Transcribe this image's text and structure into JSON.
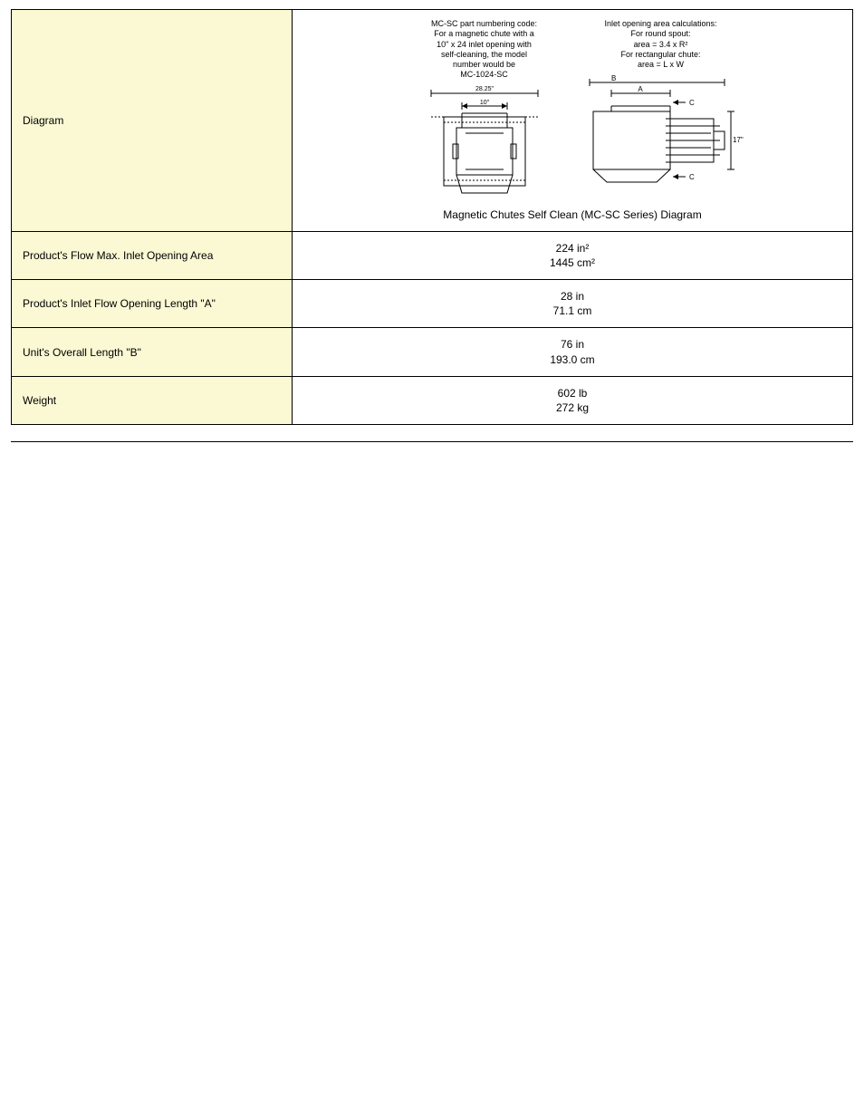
{
  "rows": {
    "diagram": {
      "label": "Diagram",
      "left_text": "MC-SC part numbering code:\nFor a magnetic chute with a\n10\" x 24 inlet opening with\nself-cleaning, the model\nnumber would be\nMC-1024-SC",
      "right_text": "Inlet opening area calculations:\nFor round spout:\narea = 3.4 x R²\nFor rectangular chute:\narea = L x W",
      "caption": "Magnetic Chutes Self Clean (MC-SC Series) Diagram",
      "dim_overall": "28.25\"",
      "dim_inner": "10\"",
      "dim_B": "B",
      "dim_A": "A",
      "dim_C": "C",
      "dim_17": "17\""
    },
    "inlet_area": {
      "label": "Product's Flow Max. Inlet Opening Area",
      "v1": "224 in²",
      "v2": "1445 cm²"
    },
    "inlet_length": {
      "label": "Product's Inlet Flow Opening Length \"A\"",
      "v1": "28 in",
      "v2": "71.1 cm"
    },
    "overall_length": {
      "label": "Unit's Overall Length \"B\"",
      "v1": "76 in",
      "v2": "193.0 cm"
    },
    "weight": {
      "label": "Weight",
      "v1": "602 lb",
      "v2": "272 kg"
    }
  },
  "colors": {
    "label_bg": "#FAF9D4",
    "border": "#000000",
    "text": "#000000"
  }
}
